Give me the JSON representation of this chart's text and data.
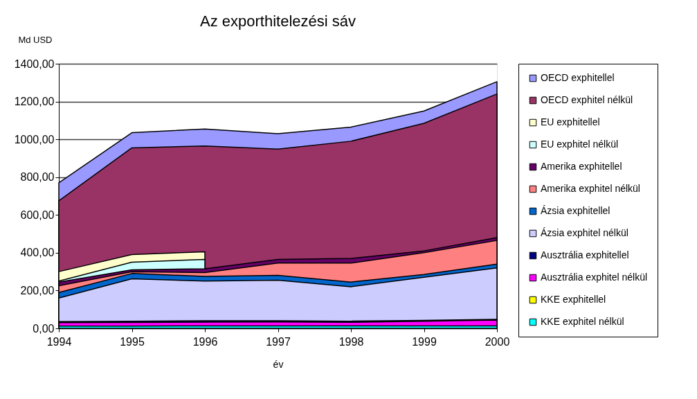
{
  "chart_data": {
    "type": "area",
    "title": "Az exporthitelezési sáv",
    "xlabel": "év",
    "ylabel": "Md USD",
    "x": [
      1994,
      1995,
      1996,
      1997,
      1998,
      1999,
      2000
    ],
    "xlim": [
      1994,
      2000
    ],
    "xticks": [
      1994,
      1995,
      1996,
      1997,
      1998,
      1999,
      2000
    ],
    "ylim": [
      0,
      1400
    ],
    "yticks": [
      {
        "value": 0,
        "label": "0,00"
      },
      {
        "value": 200,
        "label": "200,00"
      },
      {
        "value": 400,
        "label": "400,00"
      },
      {
        "value": 600,
        "label": "600,00"
      },
      {
        "value": 800,
        "label": "800,00"
      },
      {
        "value": 1000,
        "label": "1000,00"
      },
      {
        "value": 1200,
        "label": "1200,00"
      },
      {
        "value": 1400,
        "label": "1400,00"
      }
    ],
    "grid": "y",
    "legend": "right",
    "series": [
      {
        "name": "OECD exphitellel",
        "color": "#9999ff",
        "values": [
          770,
          1035,
          1055,
          1030,
          1065,
          1150,
          1305
        ]
      },
      {
        "name": "OECD exphitel nélkül",
        "color": "#993366",
        "values": [
          675,
          955,
          965,
          948,
          990,
          1085,
          1240
        ]
      },
      {
        "name": "EU exphitellel",
        "color": "#ffffcc",
        "values": [
          300,
          390,
          405,
          null,
          null,
          null,
          null
        ]
      },
      {
        "name": "EU exphitel nélkül",
        "color": "#ccffff",
        "values": [
          250,
          350,
          365,
          null,
          null,
          null,
          null
        ]
      },
      {
        "name": "Amerika exphitellel",
        "color": "#660066",
        "values": [
          245,
          310,
          315,
          365,
          370,
          410,
          480
        ]
      },
      {
        "name": "Amerika exphitel nélkül",
        "color": "#ff8080",
        "values": [
          225,
          300,
          295,
          345,
          345,
          400,
          465
        ]
      },
      {
        "name": "Ázsia exphitellel",
        "color": "#0066cc",
        "values": [
          190,
          290,
          275,
          280,
          245,
          285,
          340
        ]
      },
      {
        "name": "Ázsia exphitel nélkül",
        "color": "#ccccff",
        "values": [
          160,
          262,
          250,
          255,
          220,
          270,
          320
        ]
      },
      {
        "name": "Ausztrália exphitellel",
        "color": "#000080",
        "values": [
          36,
          38,
          40,
          40,
          38,
          42,
          48
        ]
      },
      {
        "name": "Ausztrália exphitel nélkül",
        "color": "#ff00ff",
        "values": [
          30,
          31,
          33,
          34,
          32,
          38,
          44
        ]
      },
      {
        "name": "KKE exphitellel",
        "color": "#ffff00",
        "values": [
          null,
          null,
          null,
          null,
          null,
          null,
          null
        ]
      },
      {
        "name": "KKE exphitel nélkül",
        "color": "#00ffff",
        "values": [
          12,
          12,
          13,
          13,
          13,
          13,
          13
        ]
      }
    ]
  }
}
